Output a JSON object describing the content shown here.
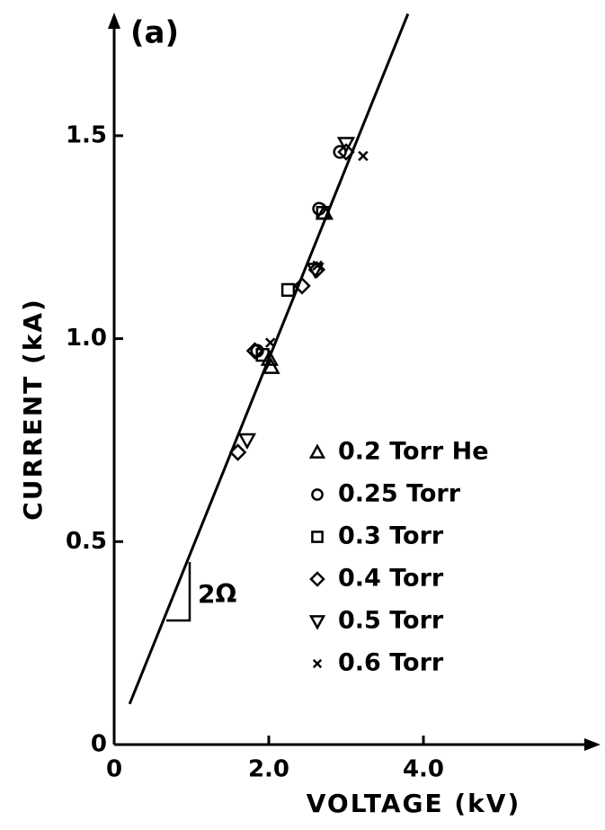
{
  "chart_data": {
    "type": "scatter",
    "annotation": "(a)",
    "slope_label": "2Ω",
    "x_label": "VOLTAGE (kV)",
    "y_label": "CURRENT (kA)",
    "xlim": [
      0,
      6.2
    ],
    "ylim": [
      0,
      1.8
    ],
    "xticks": [
      0,
      {
        "value": 2,
        "label": "2.0"
      },
      {
        "value": 4,
        "label": "4.0"
      }
    ],
    "yticks": [
      0,
      0.5,
      {
        "value": 1,
        "label": "1.0"
      },
      1.5
    ],
    "legend": "lower right",
    "fit_line": {
      "x": [
        0.2,
        3.8
      ],
      "y": [
        0.1,
        1.8
      ]
    },
    "series": [
      {
        "name": "0.2 Torr He",
        "marker": "triangle",
        "color": "#000",
        "x": [
          2.01,
          2.03,
          2.72
        ],
        "y": [
          0.95,
          0.93,
          1.31
        ]
      },
      {
        "name": "0.25 Torr",
        "marker": "circle",
        "color": "#000",
        "x": [
          2.92,
          2.65,
          1.85
        ],
        "y": [
          1.46,
          1.32,
          0.97
        ]
      },
      {
        "name": "0.3 Torr",
        "marker": "square",
        "color": "#000",
        "x": [
          2.25,
          2.7,
          1.92
        ],
        "y": [
          1.12,
          1.31,
          0.96
        ]
      },
      {
        "name": "0.4 Torr",
        "marker": "diamond",
        "color": "#000",
        "x": [
          1.6,
          3.0,
          2.43,
          2.62,
          1.82
        ],
        "y": [
          0.72,
          1.46,
          1.13,
          1.17,
          0.97
        ]
      },
      {
        "name": "0.5 Torr",
        "marker": "triangle-down",
        "color": "#000",
        "x": [
          1.72,
          3.0,
          2.6
        ],
        "y": [
          0.75,
          1.48,
          1.17
        ]
      },
      {
        "name": "0.6 Torr",
        "marker": "x",
        "color": "#000",
        "x": [
          3.22,
          2.02,
          2.63
        ],
        "y": [
          1.45,
          0.99,
          1.18
        ]
      }
    ]
  }
}
